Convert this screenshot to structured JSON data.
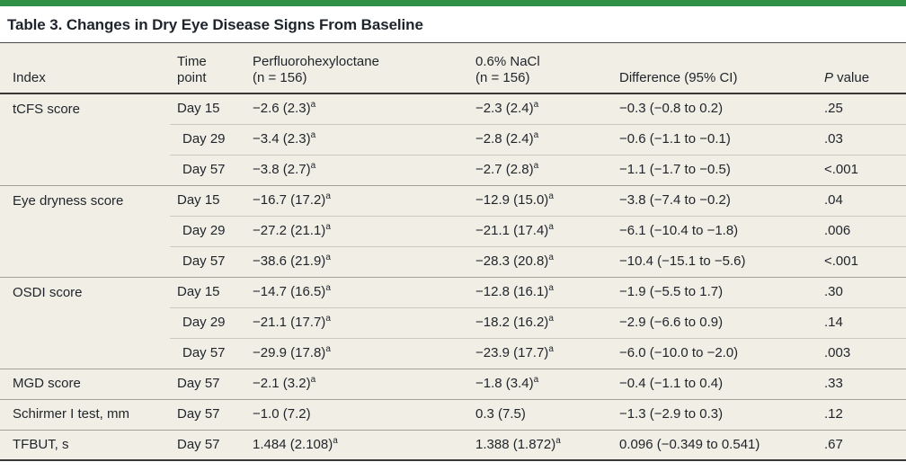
{
  "colors": {
    "accent_green": "#2f9146",
    "table_bg": "#f1efe5",
    "text": "#1f242b"
  },
  "table": {
    "title": "Table 3. Changes in Dry Eye Disease Signs From Baseline",
    "header": {
      "index": "Index",
      "time": "Time\npoint",
      "pfh": "Perfluorohexyloctane\n(n = 156)",
      "nacl": "0.6% NaCl\n(n = 156)",
      "diff": "Difference (95% CI)",
      "p_italic": "P",
      "p_rest": " value"
    },
    "groups": [
      {
        "index": "tCFS score",
        "rows": [
          {
            "time": "Day 15",
            "pfh": "−2.6 (2.3)^a",
            "nacl": "−2.3 (2.4)^a",
            "diff": "−0.3 (−0.8 to 0.2)",
            "p": ".25"
          },
          {
            "time": "Day 29",
            "pfh": "−3.4 (2.3)^a",
            "nacl": "−2.8 (2.4)^a",
            "diff": "−0.6 (−1.1 to −0.1)",
            "p": ".03"
          },
          {
            "time": "Day 57",
            "pfh": "−3.8 (2.7)^a",
            "nacl": "−2.7 (2.8)^a",
            "diff": "−1.1 (−1.7 to −0.5)",
            "p": "<.001"
          }
        ]
      },
      {
        "index": "Eye dryness score",
        "rows": [
          {
            "time": "Day 15",
            "pfh": "−16.7 (17.2)^a",
            "nacl": "−12.9 (15.0)^a",
            "diff": "−3.8 (−7.4 to −0.2)",
            "p": ".04"
          },
          {
            "time": "Day 29",
            "pfh": "−27.2 (21.1)^a",
            "nacl": "−21.1 (17.4)^a",
            "diff": "−6.1 (−10.4 to −1.8)",
            "p": ".006"
          },
          {
            "time": "Day 57",
            "pfh": "−38.6 (21.9)^a",
            "nacl": "−28.3 (20.8)^a",
            "diff": "−10.4 (−15.1 to −5.6)",
            "p": "<.001"
          }
        ]
      },
      {
        "index": "OSDI score",
        "rows": [
          {
            "time": "Day 15",
            "pfh": "−14.7 (16.5)^a",
            "nacl": "−12.8 (16.1)^a",
            "diff": "−1.9 (−5.5 to 1.7)",
            "p": ".30"
          },
          {
            "time": "Day 29",
            "pfh": "−21.1 (17.7)^a",
            "nacl": "−18.2 (16.2)^a",
            "diff": "−2.9 (−6.6 to 0.9)",
            "p": ".14"
          },
          {
            "time": "Day 57",
            "pfh": "−29.9 (17.8)^a",
            "nacl": "−23.9 (17.7)^a",
            "diff": "−6.0 (−10.0 to −2.0)",
            "p": ".003"
          }
        ]
      },
      {
        "index": "MGD score",
        "rows": [
          {
            "time": "Day 57",
            "pfh": "−2.1 (3.2)^a",
            "nacl": "−1.8 (3.4)^a",
            "diff": "−0.4 (−1.1 to 0.4)",
            "p": ".33"
          }
        ]
      },
      {
        "index": "Schirmer I test, mm",
        "rows": [
          {
            "time": "Day 57",
            "pfh": "−1.0 (7.2)",
            "nacl": "0.3 (7.5)",
            "diff": "−1.3 (−2.9 to 0.3)",
            "p": ".12"
          }
        ]
      },
      {
        "index": "TFBUT, s",
        "rows": [
          {
            "time": "Day 57",
            "pfh": "1.484 (2.108)^a",
            "nacl": "1.388 (1.872)^a",
            "diff": "0.096 (−0.349 to 0.541)",
            "p": ".67"
          }
        ]
      }
    ]
  }
}
